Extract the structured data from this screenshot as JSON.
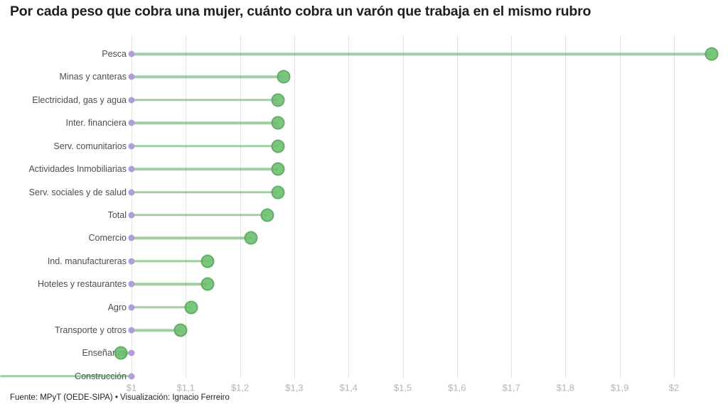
{
  "title": "Por cada peso que cobra una mujer, cuánto cobra un varón que trabaja en el mismo rubro",
  "footer": "Fuente: MPyT (OEDE-SIPA) • Visualización: Ignacio Ferreiro",
  "colors": {
    "dot_fill": "#6dbf70",
    "dot_border": "#54a758",
    "line": "rgba(67,160,71,0.5)",
    "baseline_dot": "#b29cd9",
    "gridline": "#e3e3e3",
    "tick_label": "#b3b3b3",
    "category_label": "#4d4d4d",
    "title_text": "#1f1f1f"
  },
  "chart_data": {
    "type": "bar",
    "variant": "lollipop",
    "title": "Por cada peso que cobra una mujer, cuánto cobra un varón que trabaja en el mismo rubro",
    "xlabel": "",
    "ylabel": "",
    "baseline": 1,
    "xlim_visible": [
      0.76,
      2.08
    ],
    "grid": "vertical",
    "categories": [
      "Pesca",
      "Minas y canteras",
      "Electricidad, gas y agua",
      "Inter. financiera",
      "Serv. comunitarios",
      "Actividades Inmobiliarias",
      "Serv. sociales y de salud",
      "Total",
      "Comercio",
      "Ind. manufactureras",
      "Hoteles y restaurantes",
      "Agro",
      "Transporte y otros",
      "Enseñanza",
      "Construcción"
    ],
    "values": [
      2.07,
      1.28,
      1.27,
      1.27,
      1.27,
      1.27,
      1.27,
      1.25,
      1.22,
      1.14,
      1.14,
      1.11,
      1.09,
      0.98,
      null
    ],
    "off_scale_left": [
      "Construcción"
    ],
    "x_ticks": {
      "values": [
        1,
        1.1,
        1.2,
        1.3,
        1.4,
        1.5,
        1.6,
        1.7,
        1.8,
        1.9,
        2
      ],
      "labels": [
        "$1",
        "$1,1",
        "$1,2",
        "$1,3",
        "$1,4",
        "$1,5",
        "$1,6",
        "$1,7",
        "$1,8",
        "$1,9",
        "$2"
      ]
    }
  }
}
